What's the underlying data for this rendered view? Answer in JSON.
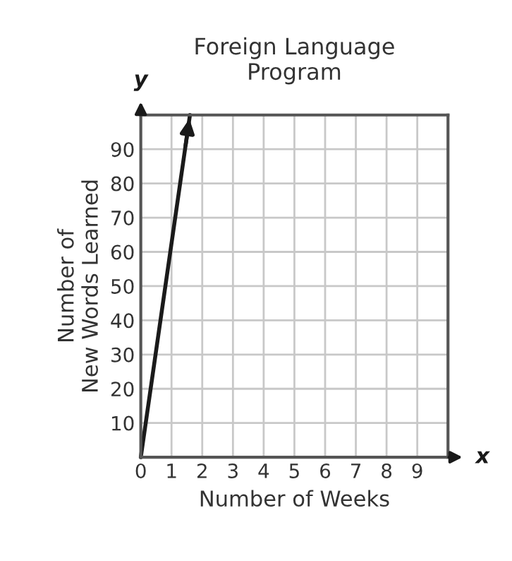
{
  "chart_data": {
    "type": "line",
    "title": "Foreign Language\nProgram",
    "xlabel": "Number of Weeks",
    "ylabel": "Number of\nNew Words Learned",
    "x": [
      0,
      1.6
    ],
    "series": [
      {
        "color": "#1a1a1a",
        "values": [
          0,
          100
        ]
      }
    ],
    "xlim": [
      0,
      10
    ],
    "ylim": [
      0,
      100
    ],
    "xticks": [
      0,
      1,
      2,
      3,
      4,
      5,
      6,
      7,
      8,
      9,
      {
        "value": 10,
        "label": null
      }
    ],
    "yticks": [
      {
        "value": 0,
        "label": null
      },
      10,
      20,
      30,
      40,
      50,
      60,
      70,
      80,
      90,
      {
        "value": 100,
        "label": null
      }
    ],
    "grid": true,
    "marker": "none",
    "line_style": "solid",
    "annotations": [
      "x",
      "y"
    ]
  }
}
